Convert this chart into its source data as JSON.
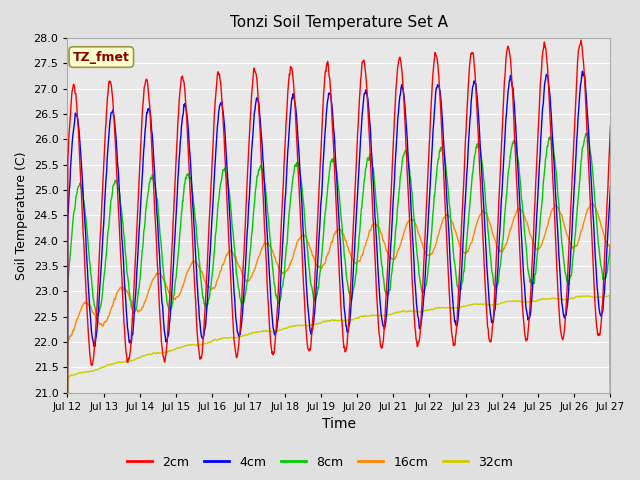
{
  "title": "Tonzi Soil Temperature Set A",
  "xlabel": "Time",
  "ylabel": "Soil Temperature (C)",
  "ylim": [
    21.0,
    28.0
  ],
  "yticks": [
    21.0,
    21.5,
    22.0,
    22.5,
    23.0,
    23.5,
    24.0,
    24.5,
    25.0,
    25.5,
    26.0,
    26.5,
    27.0,
    27.5,
    28.0
  ],
  "colors": {
    "2cm": "#ff0000",
    "4cm": "#0000ff",
    "8cm": "#00cc00",
    "16cm": "#ff8800",
    "32cm": "#cccc00"
  },
  "legend_label": "TZ_fmet",
  "legend_box_facecolor": "#ffffcc",
  "legend_box_edgecolor": "#999944",
  "legend_text_color": "#880000",
  "background_color": "#e0e0e0",
  "plot_bg_color": "#e8e8e8",
  "grid_color": "#ffffff",
  "n_days": 15,
  "start_day": 12,
  "points_per_day": 96,
  "line_width": 1.0
}
